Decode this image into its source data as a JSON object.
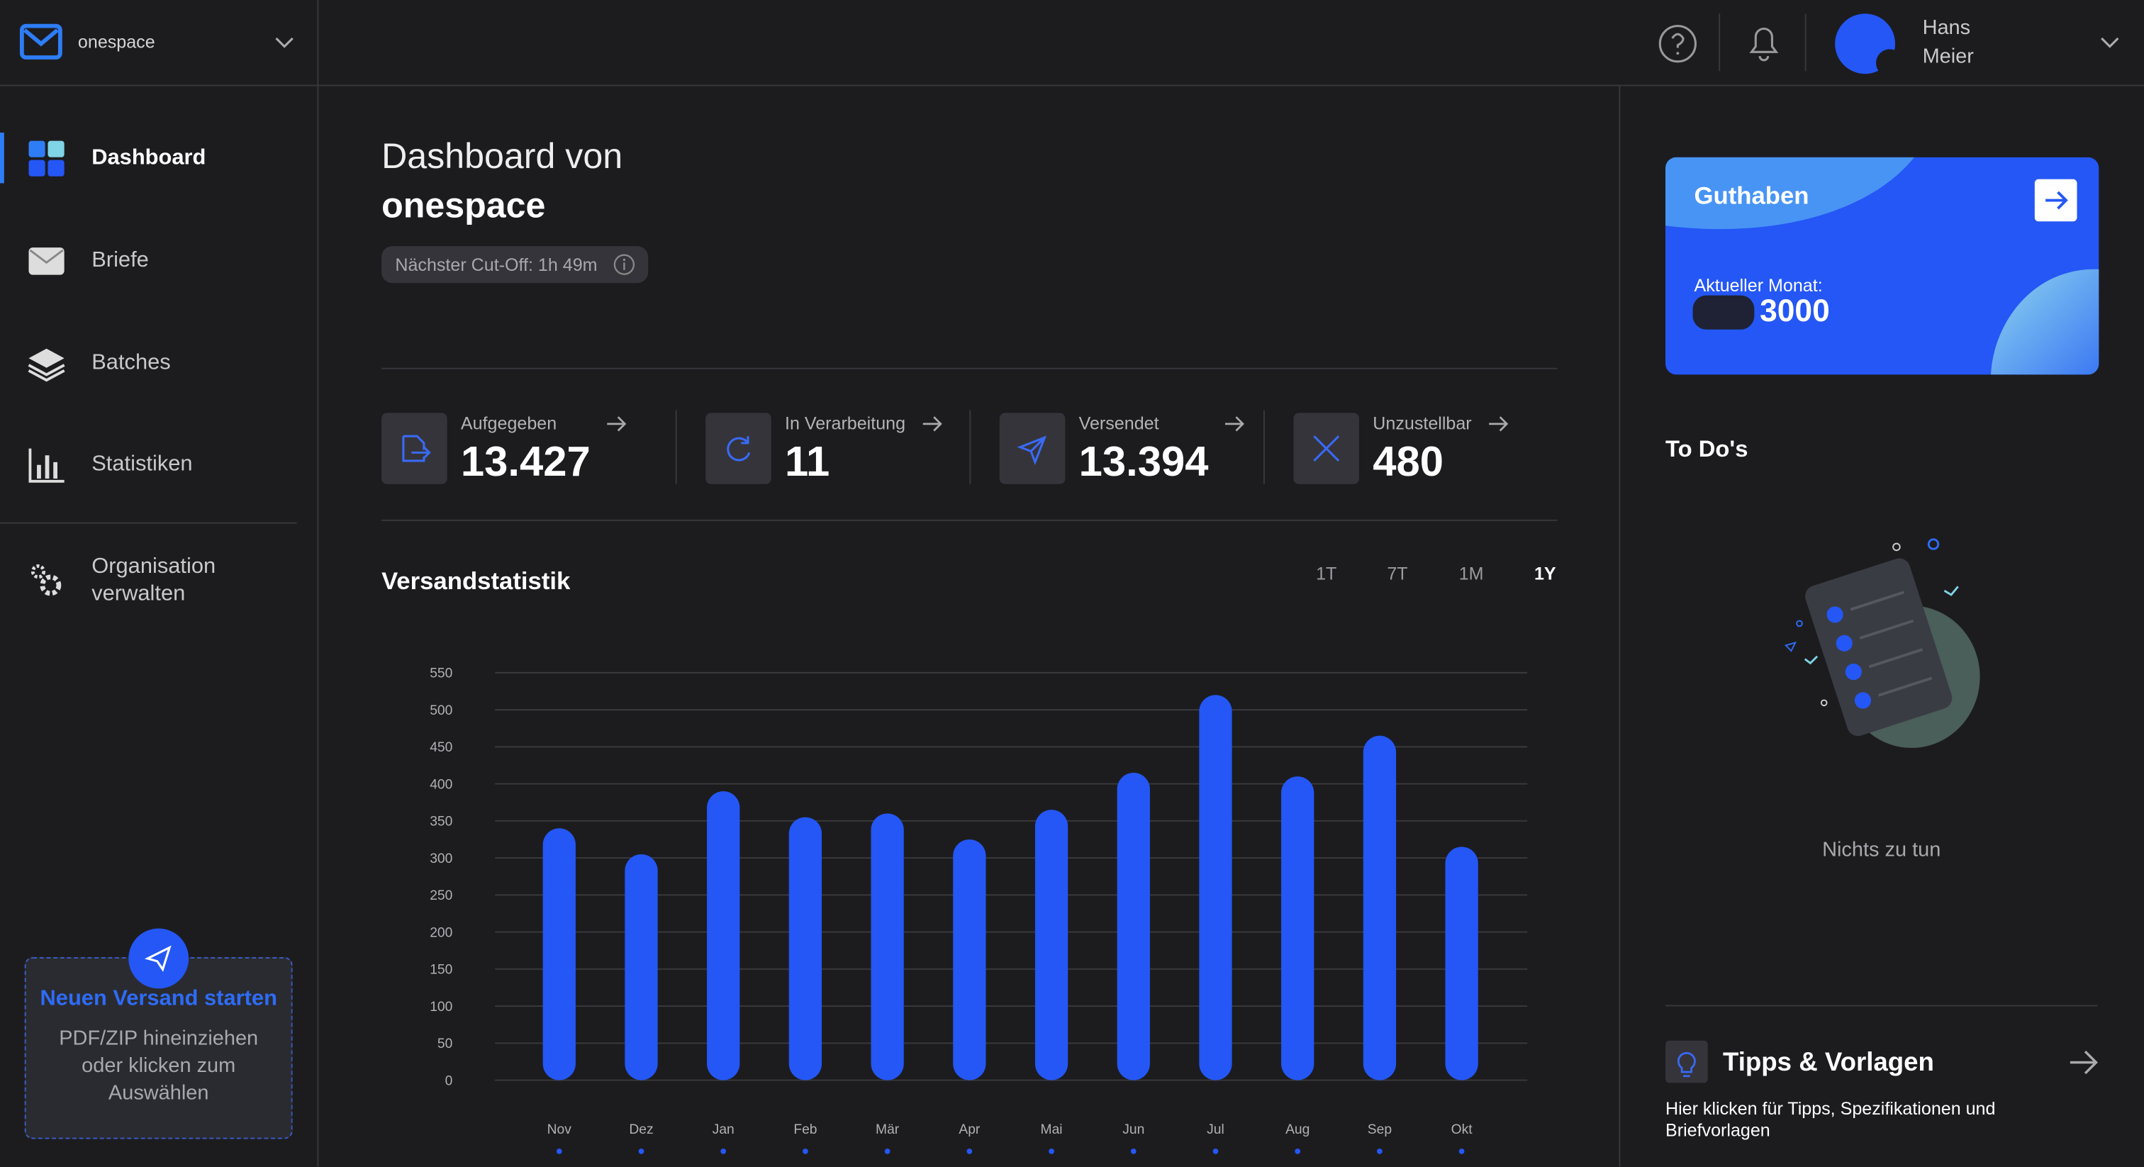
{
  "header": {
    "workspace": "onespace",
    "user_name": "Hans Meier"
  },
  "nav": {
    "items": [
      "Dashboard",
      "Briefe",
      "Batches",
      "Statistiken",
      "Organisation verwalten"
    ]
  },
  "upload": {
    "title": "Neuen Versand starten",
    "hint": "PDF/ZIP hineinziehen oder klicken zum Auswählen"
  },
  "dashboard": {
    "heading": "Dashboard von",
    "workspace": "onespace",
    "cutoff": "Nächster Cut-Off: 1h 49m",
    "stats": [
      {
        "label": "Aufgegeben",
        "value": "13.427"
      },
      {
        "label": "In Verarbeitung",
        "value": "11"
      },
      {
        "label": "Versendet",
        "value": "13.394"
      },
      {
        "label": "Unzustellbar",
        "value": "480"
      }
    ]
  },
  "chart_data": {
    "type": "bar",
    "title": "Versandstatistik",
    "ranges": [
      "1T",
      "7T",
      "1M",
      "1Y"
    ],
    "active_range": "1Y",
    "categories": [
      "Nov",
      "Dez",
      "Jan",
      "Feb",
      "Mär",
      "Apr",
      "Mai",
      "Jun",
      "Jul",
      "Aug",
      "Sep",
      "Okt"
    ],
    "values": [
      340,
      305,
      390,
      355,
      360,
      325,
      365,
      415,
      520,
      410,
      465,
      315
    ],
    "color": "#2457f5",
    "ylim": [
      0,
      550
    ],
    "yticks": [
      0,
      50,
      100,
      150,
      200,
      250,
      300,
      350,
      400,
      450,
      500,
      550
    ],
    "grid": true
  },
  "balance": {
    "title": "Guthaben",
    "label": "Aktueller Monat:",
    "value": "3000"
  },
  "todos": {
    "title": "To Do's",
    "empty": "Nichts zu tun"
  },
  "tips": {
    "title": "Tipps & Vorlagen",
    "text": "Hier klicken für Tipps, Spezifikationen und Briefvorlagen"
  }
}
